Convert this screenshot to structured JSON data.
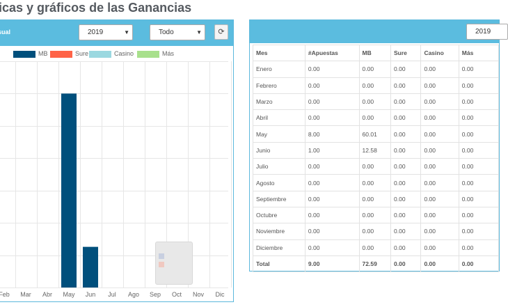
{
  "page": {
    "title": "icas y gráficos de las Ganancias"
  },
  "chart_panel": {
    "header_label": "sual",
    "year_select": "2019",
    "type_select": "Todo",
    "refresh_icon": "refresh-icon",
    "colors": {
      "header": "#5bbcdf",
      "MB": "#004f7c",
      "Sure": "#ff6347",
      "Casino": "#9bd8e0",
      "Mas": "#a8e08c"
    }
  },
  "chart_data": {
    "type": "bar",
    "categories": [
      "Feb",
      "Mar",
      "Abr",
      "May",
      "Jun",
      "Jul",
      "Ago",
      "Sep",
      "Oct",
      "Nov",
      "Dic"
    ],
    "series": [
      {
        "name": "MB",
        "values": [
          0,
          0,
          0,
          60.01,
          12.58,
          0,
          0,
          0,
          0,
          0,
          0
        ]
      },
      {
        "name": "Sure",
        "values": [
          0,
          0,
          0,
          0,
          0,
          0,
          0,
          0,
          0,
          0,
          0
        ]
      },
      {
        "name": "Casino",
        "values": [
          0,
          0,
          0,
          0,
          0,
          0,
          0,
          0,
          0,
          0,
          0
        ]
      },
      {
        "name": "Más",
        "values": [
          0,
          0,
          0,
          0,
          0,
          0,
          0,
          0,
          0,
          0,
          0
        ]
      }
    ],
    "ylim": [
      0,
      70
    ],
    "grid": true,
    "legend": "top"
  },
  "table_panel": {
    "year_select": "2019",
    "columns": [
      "Mes",
      "#Apuestas",
      "MB",
      "Sure",
      "Casino",
      "Más"
    ],
    "rows": [
      [
        "Enero",
        "0.00",
        "0.00",
        "0.00",
        "0.00",
        "0.00"
      ],
      [
        "Febrero",
        "0.00",
        "0.00",
        "0.00",
        "0.00",
        "0.00"
      ],
      [
        "Marzo",
        "0.00",
        "0.00",
        "0.00",
        "0.00",
        "0.00"
      ],
      [
        "Abril",
        "0.00",
        "0.00",
        "0.00",
        "0.00",
        "0.00"
      ],
      [
        "May",
        "8.00",
        "60.01",
        "0.00",
        "0.00",
        "0.00"
      ],
      [
        "Junio",
        "1.00",
        "12.58",
        "0.00",
        "0.00",
        "0.00"
      ],
      [
        "Julio",
        "0.00",
        "0.00",
        "0.00",
        "0.00",
        "0.00"
      ],
      [
        "Agosto",
        "0.00",
        "0.00",
        "0.00",
        "0.00",
        "0.00"
      ],
      [
        "Septiembre",
        "0.00",
        "0.00",
        "0.00",
        "0.00",
        "0.00"
      ],
      [
        "Octubre",
        "0.00",
        "0.00",
        "0.00",
        "0.00",
        "0.00"
      ],
      [
        "Noviembre",
        "0.00",
        "0.00",
        "0.00",
        "0.00",
        "0.00"
      ],
      [
        "Diciembre",
        "0.00",
        "0.00",
        "0.00",
        "0.00",
        "0.00"
      ]
    ],
    "total": [
      "Total",
      "9.00",
      "72.59",
      "0.00",
      "0.00",
      "0.00"
    ]
  }
}
